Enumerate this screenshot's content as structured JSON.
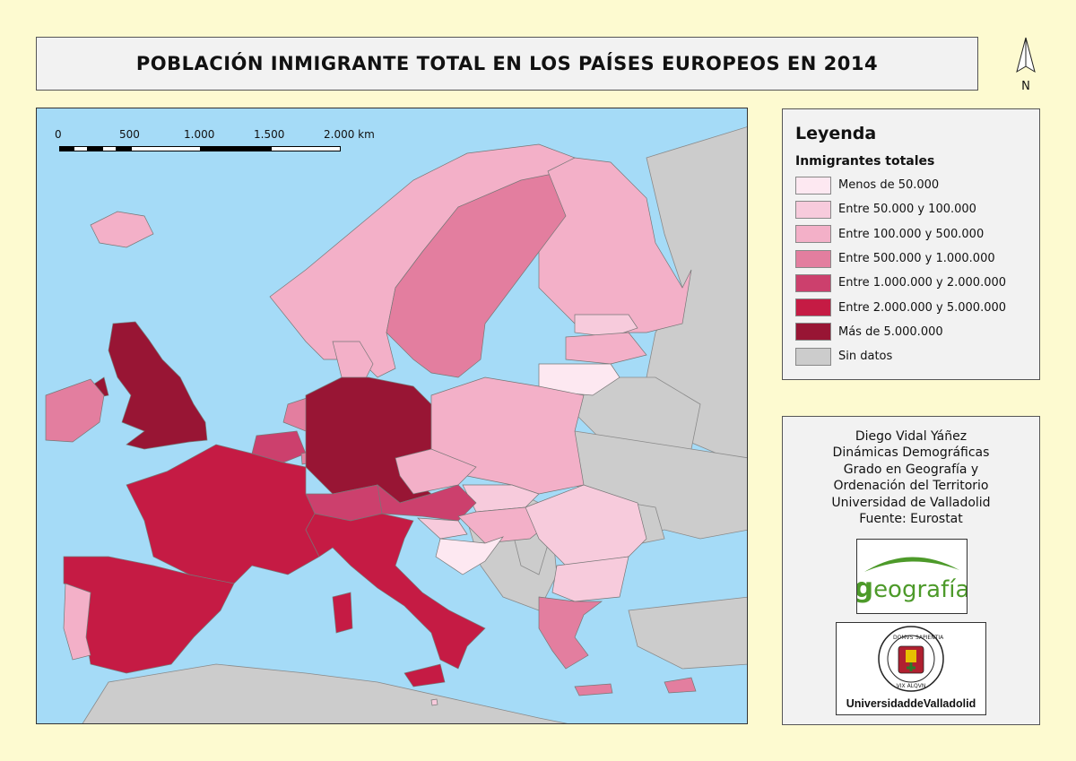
{
  "title": "POBLACIÓN INMIGRANTE TOTAL EN LOS PAÍSES EUROPEOS EN 2014",
  "north_arrow": {
    "label": "N"
  },
  "scale_bar": {
    "labels": [
      "0",
      "500",
      "1.000",
      "1.500",
      "2.000 km"
    ]
  },
  "legend": {
    "title": "Leyenda",
    "subtitle": "Inmigrantes totales",
    "classes": [
      {
        "label": "Menos de 50.000",
        "color": "#fde8f1"
      },
      {
        "label": "Entre 50.000 y 100.000",
        "color": "#f7cbdc"
      },
      {
        "label": "Entre 100.000 y 500.000",
        "color": "#f3b0c8"
      },
      {
        "label": "Entre 500.000 y 1.000.000",
        "color": "#e37e9f"
      },
      {
        "label": "Entre 1.000.000 y 2.000.000",
        "color": "#cc406d"
      },
      {
        "label": "Entre 2.000.000 y 5.000.000",
        "color": "#c51b44"
      },
      {
        "label": "Más de 5.000.000",
        "color": "#981534"
      },
      {
        "label": "Sin datos",
        "color": "#cccccc"
      }
    ]
  },
  "map": {
    "sea_color": "#a5dbf7",
    "regions": [
      {
        "name": "Reino Unido",
        "class": 6
      },
      {
        "name": "Irlanda",
        "class": 3
      },
      {
        "name": "Islandia",
        "class": 2
      },
      {
        "name": "Noruega",
        "class": 2
      },
      {
        "name": "Suecia",
        "class": 3
      },
      {
        "name": "Finlandia",
        "class": 2
      },
      {
        "name": "Estonia",
        "class": 1
      },
      {
        "name": "Letonia",
        "class": 2
      },
      {
        "name": "Lituania",
        "class": 0
      },
      {
        "name": "Dinamarca",
        "class": 2
      },
      {
        "name": "Países Bajos",
        "class": 3
      },
      {
        "name": "Bélgica",
        "class": 4
      },
      {
        "name": "Luxemburgo",
        "class": 3
      },
      {
        "name": "Alemania",
        "class": 6
      },
      {
        "name": "Polonia",
        "class": 2
      },
      {
        "name": "República Checa",
        "class": 2
      },
      {
        "name": "Eslovaquia",
        "class": 1
      },
      {
        "name": "Austria",
        "class": 4
      },
      {
        "name": "Suiza",
        "class": 4
      },
      {
        "name": "Hungría",
        "class": 2
      },
      {
        "name": "Eslovenia",
        "class": 1
      },
      {
        "name": "Croacia",
        "class": 0
      },
      {
        "name": "Rumanía",
        "class": 1
      },
      {
        "name": "Bulgaria",
        "class": 1
      },
      {
        "name": "Francia",
        "class": 5
      },
      {
        "name": "España",
        "class": 5
      },
      {
        "name": "Portugal",
        "class": 2
      },
      {
        "name": "Italia",
        "class": 5
      },
      {
        "name": "Grecia",
        "class": 3
      },
      {
        "name": "Chipre",
        "class": 3
      },
      {
        "name": "Malta",
        "class": 1
      }
    ]
  },
  "credits": {
    "lines": [
      "Diego Vidal Yáñez",
      "Dinámicas Demográficas",
      "Grado en Geografía y",
      "Ordenación del Territorio",
      "Universidad de Valladolid",
      "Fuente: Eurostat"
    ]
  },
  "logos": {
    "geografia": {
      "g": "g",
      "rest": "eografía",
      "color": "#4d9a2a"
    },
    "uva": {
      "name": "UniversidaddeValladolid",
      "seal_text_left": "DOMVS",
      "seal_text_right": "SAPIENTIA",
      "seal_bottom": "VIX ALQVN"
    }
  }
}
